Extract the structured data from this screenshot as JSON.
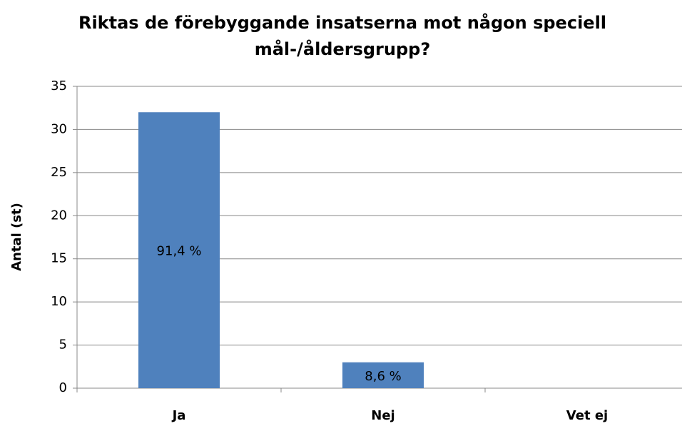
{
  "chart_data": {
    "type": "bar",
    "title": "Riktas de förebyggande insatserna mot någon speciell mål-/åldersgrupp?",
    "y_label": "Antal (st)",
    "categories": [
      "Ja",
      "Nej",
      "Vet ej"
    ],
    "values": [
      32,
      3,
      0
    ],
    "shares": [
      91.4,
      8.6,
      null
    ],
    "share_labels": [
      "91,4 %",
      "8,6 %",
      null
    ],
    "color": "#4f81bd",
    "ylim": [
      0,
      35
    ],
    "yticks": [
      0,
      5,
      10,
      15,
      20,
      25,
      30,
      35
    ],
    "grid": true
  }
}
